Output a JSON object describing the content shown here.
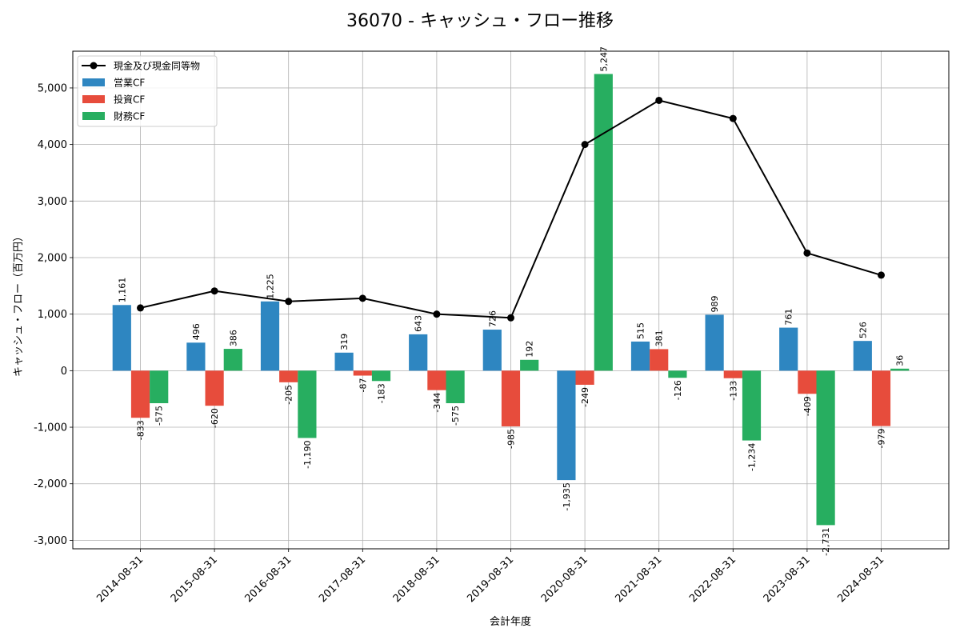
{
  "chart_data": {
    "type": "bar",
    "title": "36070 - キャッシュ・フロー推移",
    "xlabel": "会計年度",
    "ylabel": "キャッシュ・フロー（百万円）",
    "categories": [
      "2014-08-31",
      "2015-08-31",
      "2016-08-31",
      "2017-08-31",
      "2018-08-31",
      "2019-08-31",
      "2020-08-31",
      "2021-08-31",
      "2022-08-31",
      "2023-08-31",
      "2024-08-31"
    ],
    "ylim": [
      -3150,
      5650
    ],
    "yticks": [
      -3000,
      -2000,
      -1000,
      0,
      1000,
      2000,
      3000,
      4000,
      5000
    ],
    "ytick_labels": [
      "-3,000",
      "-2,000",
      "-1,000",
      "0",
      "1,000",
      "2,000",
      "3,000",
      "4,000",
      "5,000"
    ],
    "grid": true,
    "legend_position": "top-left",
    "series": [
      {
        "name": "営業CF",
        "kind": "bar",
        "color": "#2e86c1",
        "values": [
          1161,
          496,
          1225,
          319,
          643,
          726,
          -1935,
          515,
          989,
          761,
          526
        ],
        "labels": [
          "1,161",
          "496",
          "1,225",
          "319",
          "643",
          "726",
          "-1,935",
          "515",
          "989",
          "761",
          "526"
        ]
      },
      {
        "name": "投資CF",
        "kind": "bar",
        "color": "#e74c3c",
        "values": [
          -833,
          -620,
          -205,
          -87,
          -344,
          -985,
          -249,
          381,
          -133,
          -409,
          -979
        ],
        "labels": [
          "-833",
          "-620",
          "-205",
          "-87",
          "-344",
          "-985",
          "-249",
          "381",
          "-133",
          "-409",
          "-979"
        ]
      },
      {
        "name": "財務CF",
        "kind": "bar",
        "color": "#27ae60",
        "values": [
          -575,
          386,
          -1190,
          -183,
          -575,
          192,
          5247,
          -126,
          -1234,
          -2731,
          36
        ],
        "labels": [
          "-575",
          "386",
          "-1,190",
          "-183",
          "-575",
          "192",
          "5,247",
          "-126",
          "-1,234",
          "-2,731",
          "36"
        ]
      },
      {
        "name": "現金及び現金同等物",
        "kind": "line",
        "color": "#000000",
        "values": [
          1110,
          1410,
          1225,
          1280,
          1000,
          935,
          4000,
          4780,
          4460,
          2080,
          1690
        ]
      }
    ]
  }
}
